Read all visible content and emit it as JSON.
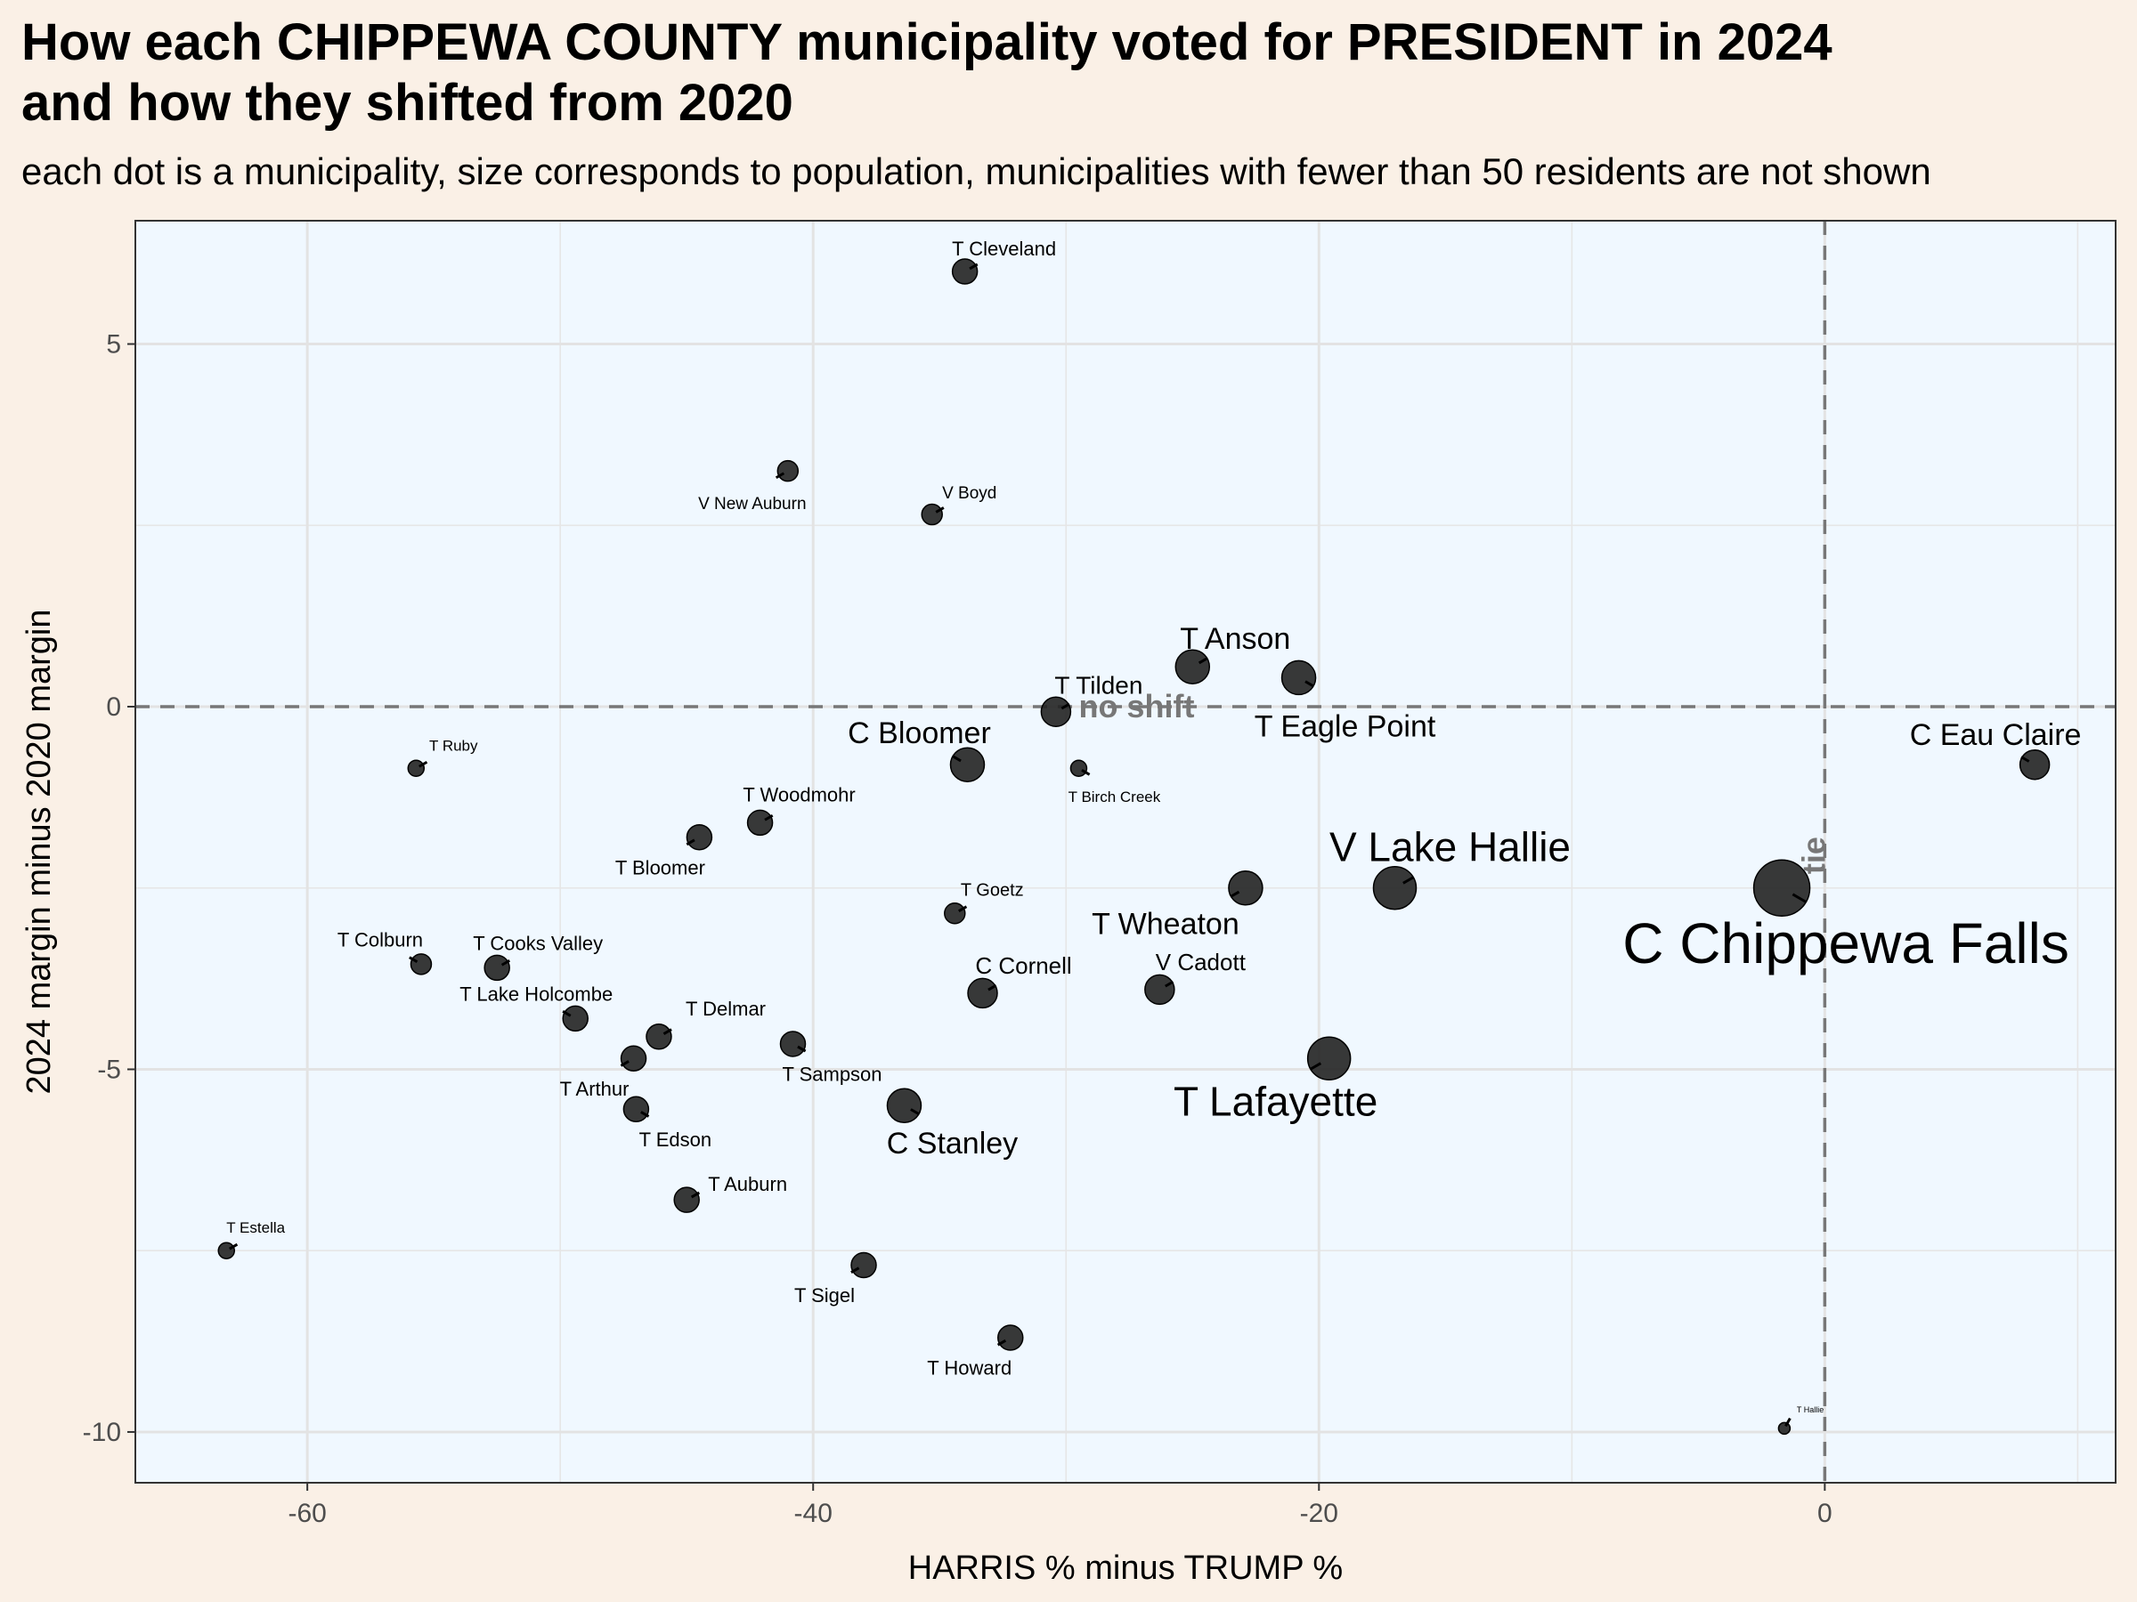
{
  "title_line1": "How each CHIPPEWA COUNTY municipality voted for PRESIDENT in 2024",
  "title_line2": "and how they shifted from 2020",
  "subtitle": "each dot is a municipality, size corresponds to population, municipalities with fewer than 50 residents are not shown",
  "chart_data": {
    "type": "scatter",
    "xlabel": "HARRIS % minus TRUMP %",
    "ylabel": "2024 margin minus 2020 margin",
    "xlim": [
      -66.8,
      11.5
    ],
    "ylim": [
      -10.7,
      6.7
    ],
    "xticks": [
      -60,
      -40,
      -20,
      0
    ],
    "yticks": [
      -10,
      -5,
      0,
      5
    ],
    "xtick_labels": [
      "-60",
      "-40",
      "-20",
      "0"
    ],
    "ytick_labels": [
      "-10",
      "-5",
      "0",
      "5"
    ],
    "grid": true,
    "background": "#f0f8ff",
    "dot_color": "#222222",
    "reference_lines": [
      {
        "axis": "y",
        "value": 0,
        "label": "no shift"
      },
      {
        "axis": "x",
        "value": 0,
        "label": "tie"
      }
    ],
    "points": [
      {
        "name": "T Cleveland",
        "x": -34.0,
        "y": 6.0,
        "size": 3
      },
      {
        "name": "V New Auburn",
        "x": -41.0,
        "y": 3.25,
        "size": 2
      },
      {
        "name": "V Boyd",
        "x": -35.3,
        "y": 2.65,
        "size": 2
      },
      {
        "name": "T Anson",
        "x": -25.0,
        "y": 0.55,
        "size": 5
      },
      {
        "name": "T Eagle Point",
        "x": -20.8,
        "y": 0.4,
        "size": 5
      },
      {
        "name": "T Tilden",
        "x": -30.4,
        "y": -0.07,
        "size": 4
      },
      {
        "name": "C Bloomer",
        "x": -33.9,
        "y": -0.8,
        "size": 5
      },
      {
        "name": "T Birch Creek",
        "x": -29.5,
        "y": -0.85,
        "size": 1
      },
      {
        "name": "T Ruby",
        "x": -55.7,
        "y": -0.85,
        "size": 1
      },
      {
        "name": "T Woodmohr",
        "x": -42.1,
        "y": -1.6,
        "size": 3
      },
      {
        "name": "T Bloomer",
        "x": -44.5,
        "y": -1.8,
        "size": 3
      },
      {
        "name": "C Eau Claire",
        "x": 8.3,
        "y": -0.8,
        "size": 4
      },
      {
        "name": "T Goetz",
        "x": -34.4,
        "y": -2.85,
        "size": 2
      },
      {
        "name": "T Wheaton",
        "x": -22.9,
        "y": -2.5,
        "size": 5
      },
      {
        "name": "V Lake Hallie",
        "x": -17.0,
        "y": -2.5,
        "size": 7
      },
      {
        "name": "C Chippewa Falls",
        "x": -1.7,
        "y": -2.5,
        "size": 10
      },
      {
        "name": "T Colburn",
        "x": -55.5,
        "y": -3.55,
        "size": 2
      },
      {
        "name": "T Cooks Valley",
        "x": -52.5,
        "y": -3.6,
        "size": 3
      },
      {
        "name": "T Lake Holcombe",
        "x": -49.4,
        "y": -4.3,
        "size": 3
      },
      {
        "name": "C Cornell",
        "x": -33.3,
        "y": -3.95,
        "size": 4
      },
      {
        "name": "V Cadott",
        "x": -26.3,
        "y": -3.9,
        "size": 4
      },
      {
        "name": "T Delmar",
        "x": -46.1,
        "y": -4.55,
        "size": 3
      },
      {
        "name": "T Sampson",
        "x": -40.8,
        "y": -4.65,
        "size": 3
      },
      {
        "name": "T Arthur",
        "x": -47.1,
        "y": -4.85,
        "size": 3
      },
      {
        "name": "T Lafayette",
        "x": -19.6,
        "y": -4.85,
        "size": 7
      },
      {
        "name": "C Stanley",
        "x": -36.4,
        "y": -5.5,
        "size": 5
      },
      {
        "name": "T Edson",
        "x": -47.0,
        "y": -5.55,
        "size": 3
      },
      {
        "name": "T Auburn",
        "x": -45.0,
        "y": -6.8,
        "size": 3
      },
      {
        "name": "T Estella",
        "x": -63.2,
        "y": -7.5,
        "size": 1
      },
      {
        "name": "T Sigel",
        "x": -38.0,
        "y": -7.7,
        "size": 3
      },
      {
        "name": "T Howard",
        "x": -32.2,
        "y": -8.7,
        "size": 3
      },
      {
        "name": "T Hallie",
        "x": -1.6,
        "y": -9.95,
        "size": 0
      }
    ]
  }
}
